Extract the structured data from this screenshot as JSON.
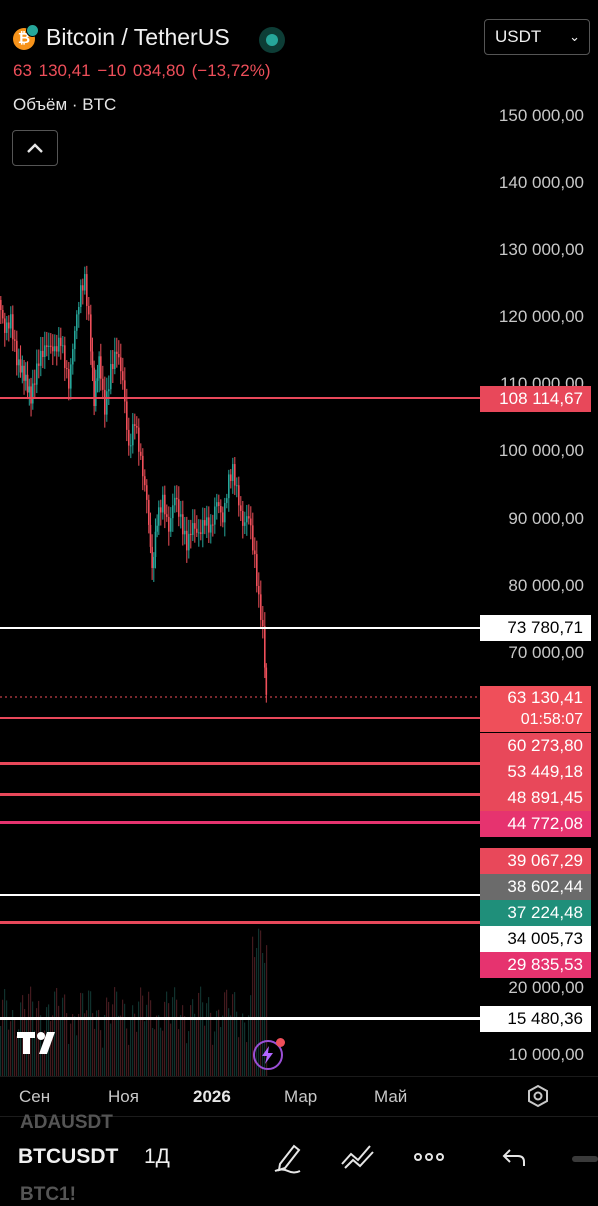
{
  "header": {
    "title": "Bitcoin / TetherUS",
    "currency": "USDT",
    "price_line": "63 130,41  −10 034,80 (−13,72%)",
    "volume_label": "Объём · BTC"
  },
  "colors": {
    "up": "#26a69a",
    "down": "#ef4f5a",
    "level_red": "#e8485a",
    "level_pink": "#e6336f",
    "level_gray": "#6b6b6b",
    "level_white": "#ffffff"
  },
  "price_axis": {
    "labels": [
      "150 000,00",
      "140 000,00",
      "130 000,00",
      "120 000,00",
      "110 000,00",
      "100 000,00",
      "90 000,00",
      "80 000,00",
      "70 000,00",
      "20 000,00",
      "10 000,00"
    ]
  },
  "level_tags": [
    {
      "price": "108 114,67",
      "style": "red"
    },
    {
      "price": "73 780,71",
      "style": "white"
    },
    {
      "price": "63 130,41",
      "sub": "01:58:07",
      "style": "current"
    },
    {
      "price": "60 273,80",
      "style": "red"
    },
    {
      "price": "53 449,18",
      "style": "red"
    },
    {
      "price": "48 891,45",
      "style": "red"
    },
    {
      "price": "44 772,08",
      "style": "pink"
    },
    {
      "price": "39 067,29",
      "style": "red"
    },
    {
      "price": "38 602,44",
      "style": "gray"
    },
    {
      "price": "37 224,48",
      "style": "green"
    },
    {
      "price": "34 005,73",
      "style": "white"
    },
    {
      "price": "29 835,53",
      "style": "pink"
    },
    {
      "price": "15 480,36",
      "style": "white"
    }
  ],
  "time_axis": [
    "Сен",
    "Ноя",
    "2026",
    "Мар",
    "Май"
  ],
  "toolbar": {
    "symbol": "BTCUSDT",
    "symbol_prev": "ADAUSDT",
    "symbol_next": "BTC1!",
    "interval": "1Д",
    "icons": [
      "pencil-icon",
      "trend-icon",
      "more-icon",
      "undo-icon"
    ]
  }
}
